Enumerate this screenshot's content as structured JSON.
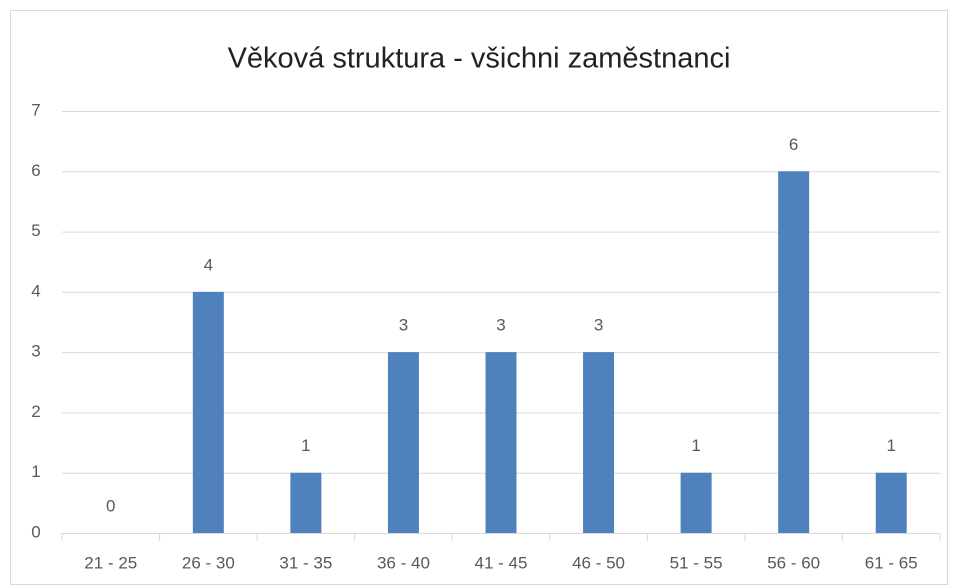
{
  "chart_data": {
    "type": "bar",
    "title": "Věková struktura - všichni zaměstnanci",
    "categories": [
      "21 - 25",
      "26 - 30",
      "31 - 35",
      "36 - 40",
      "41 - 45",
      "46 - 50",
      "51 - 55",
      "56 - 60",
      "61 - 65"
    ],
    "values": [
      0,
      4,
      1,
      3,
      3,
      3,
      1,
      6,
      1
    ],
    "color": "#4f81bd",
    "ylim": [
      0,
      7
    ],
    "yticks": [
      0,
      1,
      2,
      3,
      4,
      5,
      6,
      7
    ],
    "grid": true
  }
}
